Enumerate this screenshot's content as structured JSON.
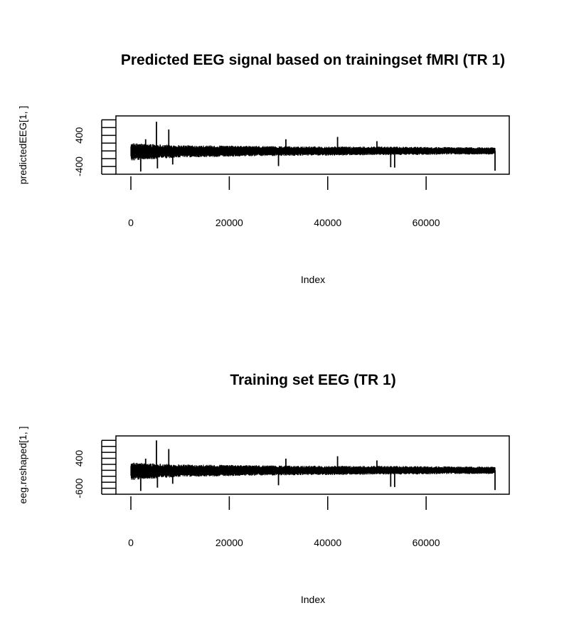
{
  "chart_data": [
    {
      "type": "line",
      "title": "Predicted EEG signal based on trainingset fMRI (TR 1)",
      "xlabel": "Index",
      "ylabel": "predictedEEG[1, ]",
      "xlim": [
        0,
        74000
      ],
      "ylim": [
        -600,
        900
      ],
      "x_ticks": [
        0,
        20000,
        40000,
        60000
      ],
      "x_tick_labels": [
        "0",
        "20000",
        "40000",
        "60000"
      ],
      "y_ticks": [
        -600,
        -400,
        -200,
        0,
        200,
        400,
        600,
        800
      ],
      "y_tick_labels": [
        "-400",
        "400"
      ],
      "y_labeled_ticks": [
        -400,
        400
      ],
      "grid": false,
      "series": [
        {
          "n_points": 74000,
          "typical_amplitude": 100,
          "envelope": [
            {
              "x": 0,
              "min": -250,
              "max": 200
            },
            {
              "x": 10000,
              "min": -170,
              "max": 150
            },
            {
              "x": 30000,
              "min": -130,
              "max": 120
            },
            {
              "x": 50000,
              "min": -110,
              "max": 110
            },
            {
              "x": 74000,
              "min": -90,
              "max": 90
            }
          ],
          "spikes": [
            {
              "x": 2000,
              "y": -530
            },
            {
              "x": 3000,
              "y": 300
            },
            {
              "x": 5200,
              "y": 750
            },
            {
              "x": 5400,
              "y": -450
            },
            {
              "x": 7700,
              "y": 550
            },
            {
              "x": 8500,
              "y": -350
            },
            {
              "x": 30000,
              "y": -390
            },
            {
              "x": 31500,
              "y": 300
            },
            {
              "x": 42000,
              "y": 360
            },
            {
              "x": 50000,
              "y": 250
            },
            {
              "x": 52800,
              "y": -420
            },
            {
              "x": 53600,
              "y": -430
            },
            {
              "x": 74000,
              "y": -510
            }
          ]
        }
      ]
    },
    {
      "type": "line",
      "title": "Training set EEG (TR 1)",
      "xlabel": "Index",
      "ylabel": "eeg.reshaped[1, ]",
      "xlim": [
        0,
        74000
      ],
      "ylim": [
        -800,
        1150
      ],
      "x_ticks": [
        0,
        20000,
        40000,
        60000
      ],
      "x_tick_labels": [
        "0",
        "20000",
        "40000",
        "60000"
      ],
      "y_ticks": [
        -800,
        -600,
        -400,
        -200,
        0,
        200,
        400,
        600,
        800,
        1000
      ],
      "y_tick_labels": [
        "-600",
        "400"
      ],
      "y_labeled_ticks": [
        -600,
        400
      ],
      "grid": false,
      "series": [
        {
          "n_points": 74000,
          "typical_amplitude": 130,
          "envelope": [
            {
              "x": 0,
              "min": -330,
              "max": 260
            },
            {
              "x": 10000,
              "min": -220,
              "max": 200
            },
            {
              "x": 30000,
              "min": -170,
              "max": 160
            },
            {
              "x": 50000,
              "min": -145,
              "max": 145
            },
            {
              "x": 74000,
              "min": -120,
              "max": 120
            }
          ],
          "spikes": [
            {
              "x": 2000,
              "y": -690
            },
            {
              "x": 3000,
              "y": 390
            },
            {
              "x": 5200,
              "y": 1000
            },
            {
              "x": 5400,
              "y": -580
            },
            {
              "x": 7700,
              "y": 710
            },
            {
              "x": 8500,
              "y": -450
            },
            {
              "x": 30000,
              "y": -500
            },
            {
              "x": 31500,
              "y": 390
            },
            {
              "x": 42000,
              "y": 470
            },
            {
              "x": 50000,
              "y": 330
            },
            {
              "x": 52800,
              "y": -550
            },
            {
              "x": 53600,
              "y": -560
            },
            {
              "x": 74000,
              "y": -660
            }
          ]
        }
      ]
    }
  ]
}
